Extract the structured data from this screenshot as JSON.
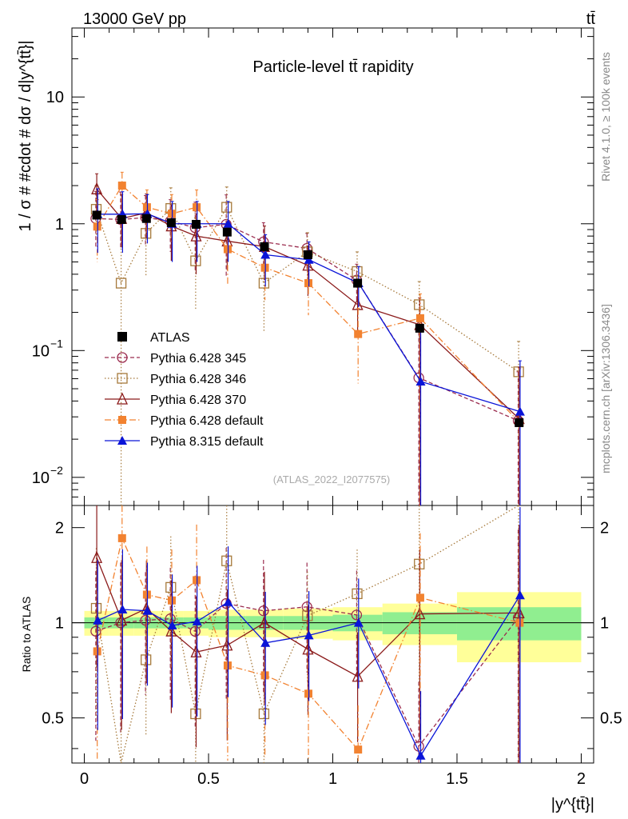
{
  "header": {
    "energy_label": "13000 GeV pp",
    "process_label": "tt̄"
  },
  "side": {
    "rivet_label": "Rivet 4.1.0, ≥ 100k events",
    "source_label": "mcplots.cern.ch [arXiv:1306.3436]"
  },
  "chart_data": {
    "type": "line",
    "title": "Particle-level tt̄ rapidity",
    "analysis_tag": "(ATLAS_2022_I2077575)",
    "xlabel": "|y^{tt̄}|",
    "ylabel": "1 / σ # #cdot # dσ / d|y^{tt̄}|",
    "ratio_ylabel": "Ratio to ATLAS",
    "xlim": [
      -0.05,
      2.05
    ],
    "ylim_log": [
      0.006,
      35
    ],
    "ratio_ylim": [
      0.36,
      2.35
    ],
    "x_ticks": [
      0,
      0.5,
      1,
      1.5,
      2
    ],
    "x_tick_labels": [
      "0",
      "0.5",
      "1",
      "1.5",
      "2"
    ],
    "y_ticks_main": [
      0.01,
      0.1,
      1,
      10
    ],
    "y_tick_labels_main": [
      {
        "base": "10",
        "exp": "−2"
      },
      {
        "base": "10",
        "exp": "−1"
      },
      {
        "base": "1",
        "exp": ""
      },
      {
        "base": "10",
        "exp": ""
      }
    ],
    "y_ticks_ratio": [
      0.5,
      1,
      2
    ],
    "y_tick_labels_ratio": [
      "0.5",
      "1",
      "2"
    ],
    "bins": [
      [
        0,
        0.1
      ],
      [
        0.1,
        0.2
      ],
      [
        0.2,
        0.3
      ],
      [
        0.3,
        0.4
      ],
      [
        0.4,
        0.5
      ],
      [
        0.5,
        0.65
      ],
      [
        0.65,
        0.8
      ],
      [
        0.8,
        1.0
      ],
      [
        1.0,
        1.2
      ],
      [
        1.2,
        1.5
      ],
      [
        1.5,
        2.0
      ]
    ],
    "x": [
      0.05,
      0.15,
      0.25,
      0.35,
      0.45,
      0.575,
      0.725,
      0.9,
      1.1,
      1.35,
      1.75
    ],
    "data": {
      "name": "ATLAS",
      "values": [
        1.17,
        1.08,
        1.1,
        1.02,
        0.99,
        0.86,
        0.66,
        0.57,
        0.34,
        0.15,
        0.027
      ],
      "ratio_band_stat": [
        0.04,
        0.04,
        0.04,
        0.04,
        0.04,
        0.05,
        0.05,
        0.05,
        0.06,
        0.08,
        0.12
      ],
      "ratio_band_total": [
        0.09,
        0.09,
        0.09,
        0.09,
        0.09,
        0.1,
        0.1,
        0.11,
        0.12,
        0.15,
        0.25
      ]
    },
    "series": [
      {
        "name": "Pythia 6.428 345",
        "color": "#9b2c4f",
        "dash": "5,3",
        "marker": "circle-open",
        "values": [
          1.1,
          1.08,
          1.12,
          1.05,
          0.93,
          0.99,
          0.72,
          0.64,
          0.36,
          0.061,
          0.028
        ],
        "err_low": [
          0.45,
          0.45,
          0.45,
          0.45,
          0.5,
          0.6,
          0.3,
          0.2,
          0.12,
          0.061,
          0.028
        ],
        "err_high": [
          0.7,
          0.7,
          0.55,
          0.5,
          0.55,
          0.7,
          0.3,
          0.2,
          0.12,
          0.08,
          0.04
        ]
      },
      {
        "name": "Pythia 6.428 346",
        "color": "#a6793b",
        "dash": "1.5,2.5",
        "marker": "square-open",
        "values": [
          1.3,
          0.34,
          0.84,
          1.32,
          0.51,
          1.35,
          0.34,
          0.6,
          0.42,
          0.23,
          0.068
        ],
        "err_low": [
          0.5,
          0.34,
          0.45,
          0.6,
          0.3,
          0.6,
          0.2,
          0.25,
          0.15,
          0.12,
          0.05
        ],
        "err_high": [
          0.7,
          0.8,
          0.6,
          0.6,
          0.6,
          0.6,
          0.25,
          0.25,
          0.18,
          0.12,
          0.05
        ]
      },
      {
        "name": "Pythia 6.428 370",
        "color": "#8b1a1a",
        "dash": "",
        "marker": "triangle-open",
        "values": [
          1.88,
          1.1,
          1.22,
          0.96,
          0.8,
          0.73,
          0.66,
          0.47,
          0.23,
          0.16,
          0.029
        ],
        "err_low": [
          0.8,
          0.45,
          0.45,
          0.45,
          0.4,
          0.3,
          0.3,
          0.2,
          0.1,
          0.16,
          0.029
        ],
        "err_high": [
          0.6,
          0.6,
          0.5,
          0.45,
          0.4,
          0.3,
          0.3,
          0.2,
          0.1,
          0.1,
          0.045
        ]
      },
      {
        "name": "Pythia 6.428 default",
        "color": "#f28230",
        "dash": "8,3,1.5,3",
        "marker": "square-filled",
        "values": [
          0.95,
          2.0,
          1.35,
          1.2,
          1.35,
          0.63,
          0.45,
          0.34,
          0.135,
          0.18,
          0.027
        ],
        "err_low": [
          0.45,
          0.6,
          0.5,
          0.5,
          0.5,
          0.3,
          0.2,
          0.15,
          0.08,
          0.18,
          0.027
        ],
        "err_high": [
          0.6,
          0.55,
          0.5,
          0.5,
          0.5,
          0.3,
          0.2,
          0.15,
          0.08,
          0.1,
          0.045
        ]
      },
      {
        "name": "Pythia 8.315 default",
        "color": "#0a14d8",
        "dash": "",
        "marker": "triangle-filled",
        "values": [
          1.19,
          1.19,
          1.2,
          1.0,
          1.0,
          1.0,
          0.57,
          0.52,
          0.34,
          0.057,
          0.033
        ],
        "err_low": [
          0.6,
          0.6,
          0.5,
          0.5,
          0.5,
          0.5,
          0.25,
          0.2,
          0.12,
          0.057,
          0.033
        ],
        "err_high": [
          0.7,
          0.6,
          0.5,
          0.5,
          0.5,
          0.5,
          0.25,
          0.2,
          0.12,
          0.1,
          0.05
        ]
      }
    ],
    "ratio_err_scale": [
      0.55,
      0.55,
      0.42,
      0.45,
      0.5,
      0.5,
      0.45,
      0.38,
      0.38,
      0.6,
      0.9
    ],
    "legend_position": "center-left"
  }
}
